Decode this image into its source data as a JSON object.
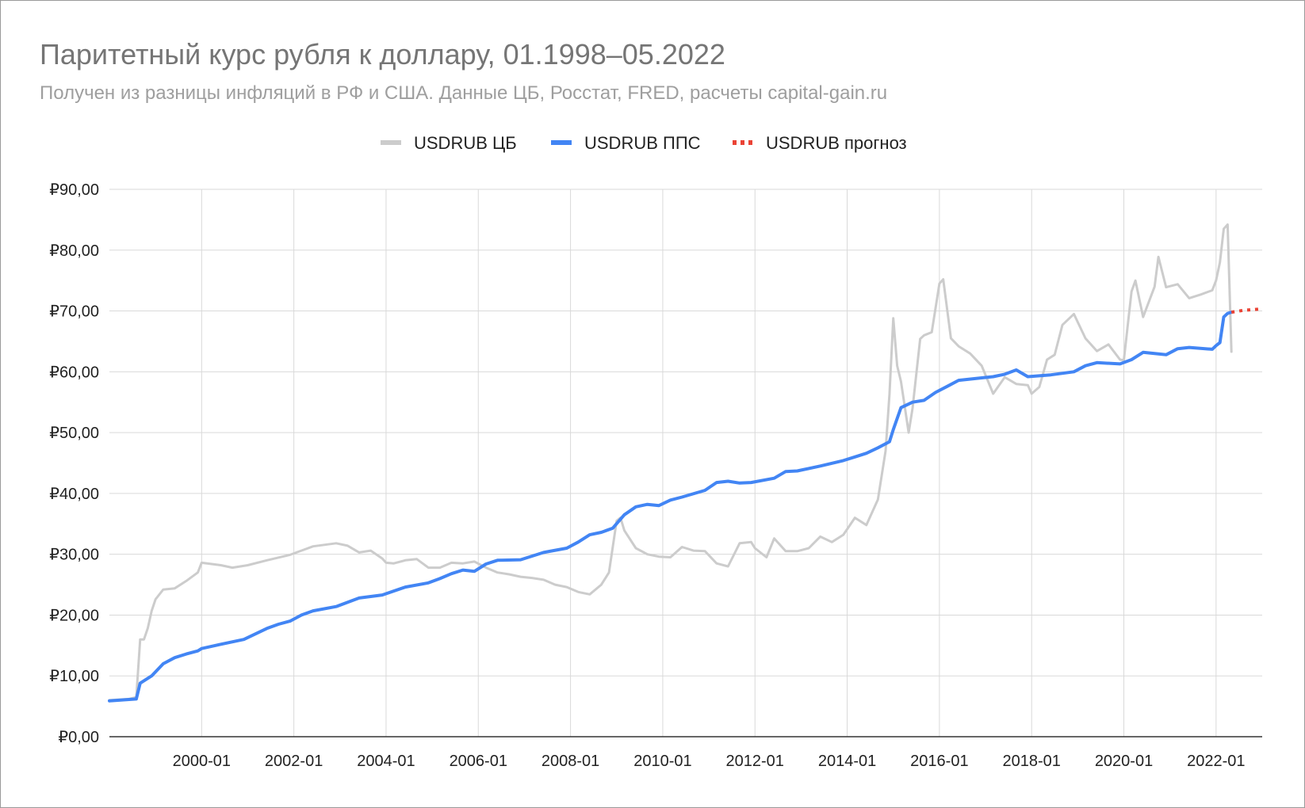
{
  "chart_data": {
    "type": "line",
    "title": "Паритетный курс рубля к доллару, 01.1998–05.2022",
    "subtitle": "Получен из разницы инфляций в РФ и США. Данные ЦБ, Росстат, FRED, расчеты capital-gain.ru",
    "xlabel": "",
    "ylabel": "",
    "x_range": [
      "1998-01",
      "2023-01"
    ],
    "ylim": [
      0,
      90
    ],
    "y_ticks": [
      0,
      10,
      20,
      30,
      40,
      50,
      60,
      70,
      80,
      90
    ],
    "y_tick_labels": [
      "₽0,00",
      "₽10,00",
      "₽20,00",
      "₽30,00",
      "₽40,00",
      "₽50,00",
      "₽60,00",
      "₽70,00",
      "₽80,00",
      "₽90,00"
    ],
    "x_tick_labels": [
      "2000-01",
      "2002-01",
      "2004-01",
      "2006-01",
      "2008-01",
      "2010-01",
      "2012-01",
      "2014-01",
      "2016-01",
      "2018-01",
      "2020-01",
      "2022-01"
    ],
    "grid": true,
    "legend_position": "top",
    "series": [
      {
        "name": "USDRUB ЦБ",
        "color": "#cccccc",
        "style": "solid",
        "points": [
          [
            "1998-01",
            6.0
          ],
          [
            "1998-06",
            6.2
          ],
          [
            "1998-08",
            6.5
          ],
          [
            "1998-09",
            16.0
          ],
          [
            "1998-10",
            16.0
          ],
          [
            "1998-11",
            17.9
          ],
          [
            "1998-12",
            20.7
          ],
          [
            "1999-01",
            22.6
          ],
          [
            "1999-03",
            24.2
          ],
          [
            "1999-06",
            24.4
          ],
          [
            "1999-09",
            25.6
          ],
          [
            "1999-12",
            27.0
          ],
          [
            "2000-01",
            28.6
          ],
          [
            "2000-06",
            28.2
          ],
          [
            "2000-09",
            27.8
          ],
          [
            "2001-01",
            28.2
          ],
          [
            "2001-06",
            29.0
          ],
          [
            "2001-12",
            29.9
          ],
          [
            "2002-06",
            31.3
          ],
          [
            "2002-12",
            31.8
          ],
          [
            "2003-03",
            31.4
          ],
          [
            "2003-06",
            30.3
          ],
          [
            "2003-09",
            30.6
          ],
          [
            "2003-12",
            29.3
          ],
          [
            "2004-01",
            28.6
          ],
          [
            "2004-03",
            28.5
          ],
          [
            "2004-06",
            29.0
          ],
          [
            "2004-09",
            29.2
          ],
          [
            "2004-12",
            27.8
          ],
          [
            "2005-03",
            27.8
          ],
          [
            "2005-06",
            28.6
          ],
          [
            "2005-09",
            28.5
          ],
          [
            "2005-12",
            28.8
          ],
          [
            "2006-03",
            27.8
          ],
          [
            "2006-06",
            27.0
          ],
          [
            "2006-09",
            26.7
          ],
          [
            "2006-12",
            26.3
          ],
          [
            "2007-03",
            26.1
          ],
          [
            "2007-06",
            25.8
          ],
          [
            "2007-09",
            25.0
          ],
          [
            "2007-12",
            24.6
          ],
          [
            "2008-03",
            23.8
          ],
          [
            "2008-06",
            23.4
          ],
          [
            "2008-09",
            25.0
          ],
          [
            "2008-11",
            27.0
          ],
          [
            "2009-01",
            35.5
          ],
          [
            "2009-02",
            36.0
          ],
          [
            "2009-03",
            33.9
          ],
          [
            "2009-06",
            31.0
          ],
          [
            "2009-09",
            30.0
          ],
          [
            "2009-12",
            29.6
          ],
          [
            "2010-03",
            29.5
          ],
          [
            "2010-06",
            31.2
          ],
          [
            "2010-09",
            30.6
          ],
          [
            "2010-12",
            30.5
          ],
          [
            "2011-03",
            28.5
          ],
          [
            "2011-06",
            28.0
          ],
          [
            "2011-09",
            31.8
          ],
          [
            "2011-12",
            32.0
          ],
          [
            "2012-01",
            31.0
          ],
          [
            "2012-04",
            29.5
          ],
          [
            "2012-06",
            32.6
          ],
          [
            "2012-09",
            30.5
          ],
          [
            "2012-12",
            30.5
          ],
          [
            "2013-03",
            31.0
          ],
          [
            "2013-06",
            32.9
          ],
          [
            "2013-09",
            32.0
          ],
          [
            "2013-12",
            33.2
          ],
          [
            "2014-03",
            36.0
          ],
          [
            "2014-06",
            34.8
          ],
          [
            "2014-09",
            39.0
          ],
          [
            "2014-11",
            47.0
          ],
          [
            "2014-12",
            56.3
          ],
          [
            "2015-01",
            68.8
          ],
          [
            "2015-02",
            61.0
          ],
          [
            "2015-03",
            58.4
          ],
          [
            "2015-05",
            50.0
          ],
          [
            "2015-06",
            54.0
          ],
          [
            "2015-08",
            65.4
          ],
          [
            "2015-09",
            66.0
          ],
          [
            "2015-11",
            66.5
          ],
          [
            "2016-01",
            74.5
          ],
          [
            "2016-02",
            75.2
          ],
          [
            "2016-04",
            65.5
          ],
          [
            "2016-06",
            64.2
          ],
          [
            "2016-09",
            63.0
          ],
          [
            "2016-12",
            61.0
          ],
          [
            "2017-03",
            56.4
          ],
          [
            "2017-06",
            59.1
          ],
          [
            "2017-09",
            58.0
          ],
          [
            "2017-12",
            57.8
          ],
          [
            "2018-01",
            56.4
          ],
          [
            "2018-03",
            57.5
          ],
          [
            "2018-05",
            62.0
          ],
          [
            "2018-07",
            62.8
          ],
          [
            "2018-09",
            67.7
          ],
          [
            "2018-12",
            69.5
          ],
          [
            "2019-03",
            65.5
          ],
          [
            "2019-06",
            63.4
          ],
          [
            "2019-09",
            64.5
          ],
          [
            "2019-12",
            62.0
          ],
          [
            "2020-01",
            61.9
          ],
          [
            "2020-03",
            73.2
          ],
          [
            "2020-04",
            75.0
          ],
          [
            "2020-06",
            69.0
          ],
          [
            "2020-09",
            74.0
          ],
          [
            "2020-10",
            78.9
          ],
          [
            "2020-12",
            73.9
          ],
          [
            "2021-03",
            74.4
          ],
          [
            "2021-06",
            72.1
          ],
          [
            "2021-09",
            72.7
          ],
          [
            "2021-12",
            73.4
          ],
          [
            "2022-01",
            75.0
          ],
          [
            "2022-02",
            78.0
          ],
          [
            "2022-03",
            83.5
          ],
          [
            "2022-04",
            84.2
          ],
          [
            "2022-05",
            63.3
          ]
        ]
      },
      {
        "name": "USDRUB ППС",
        "color": "#4285f4",
        "style": "solid",
        "points": [
          [
            "1998-01",
            5.9
          ],
          [
            "1998-08",
            6.2
          ],
          [
            "1998-09",
            8.8
          ],
          [
            "1998-12",
            10.0
          ],
          [
            "1999-03",
            12.0
          ],
          [
            "1999-06",
            13.0
          ],
          [
            "1999-09",
            13.6
          ],
          [
            "1999-12",
            14.1
          ],
          [
            "2000-01",
            14.5
          ],
          [
            "2000-06",
            15.2
          ],
          [
            "2000-12",
            16.0
          ],
          [
            "2001-06",
            17.8
          ],
          [
            "2001-09",
            18.5
          ],
          [
            "2001-12",
            19.0
          ],
          [
            "2002-03",
            20.0
          ],
          [
            "2002-06",
            20.7
          ],
          [
            "2002-12",
            21.4
          ],
          [
            "2003-06",
            22.8
          ],
          [
            "2003-12",
            23.3
          ],
          [
            "2004-06",
            24.6
          ],
          [
            "2004-12",
            25.3
          ],
          [
            "2005-03",
            26.0
          ],
          [
            "2005-06",
            26.8
          ],
          [
            "2005-09",
            27.4
          ],
          [
            "2005-12",
            27.2
          ],
          [
            "2006-03",
            28.4
          ],
          [
            "2006-06",
            29.0
          ],
          [
            "2006-12",
            29.1
          ],
          [
            "2007-06",
            30.3
          ],
          [
            "2007-12",
            31.0
          ],
          [
            "2008-03",
            32.0
          ],
          [
            "2008-06",
            33.2
          ],
          [
            "2008-09",
            33.6
          ],
          [
            "2008-12",
            34.3
          ],
          [
            "2009-03",
            36.5
          ],
          [
            "2009-06",
            37.8
          ],
          [
            "2009-09",
            38.2
          ],
          [
            "2009-12",
            38.0
          ],
          [
            "2010-03",
            38.9
          ],
          [
            "2010-06",
            39.4
          ],
          [
            "2010-12",
            40.5
          ],
          [
            "2011-03",
            41.8
          ],
          [
            "2011-06",
            42.0
          ],
          [
            "2011-09",
            41.7
          ],
          [
            "2011-12",
            41.8
          ],
          [
            "2012-06",
            42.5
          ],
          [
            "2012-09",
            43.6
          ],
          [
            "2012-12",
            43.7
          ],
          [
            "2013-06",
            44.5
          ],
          [
            "2013-12",
            45.4
          ],
          [
            "2014-03",
            46.0
          ],
          [
            "2014-06",
            46.6
          ],
          [
            "2014-09",
            47.5
          ],
          [
            "2014-12",
            48.5
          ],
          [
            "2015-01",
            50.5
          ],
          [
            "2015-03",
            54.1
          ],
          [
            "2015-06",
            55.0
          ],
          [
            "2015-09",
            55.3
          ],
          [
            "2015-12",
            56.6
          ],
          [
            "2016-03",
            57.6
          ],
          [
            "2016-06",
            58.6
          ],
          [
            "2016-12",
            59.0
          ],
          [
            "2017-03",
            59.2
          ],
          [
            "2017-06",
            59.6
          ],
          [
            "2017-09",
            60.3
          ],
          [
            "2017-12",
            59.2
          ],
          [
            "2018-06",
            59.5
          ],
          [
            "2018-12",
            60.0
          ],
          [
            "2019-03",
            61.0
          ],
          [
            "2019-06",
            61.5
          ],
          [
            "2019-12",
            61.3
          ],
          [
            "2020-03",
            62.0
          ],
          [
            "2020-06",
            63.2
          ],
          [
            "2020-12",
            62.8
          ],
          [
            "2021-03",
            63.8
          ],
          [
            "2021-06",
            64.0
          ],
          [
            "2021-12",
            63.7
          ],
          [
            "2022-01",
            64.3
          ],
          [
            "2022-02",
            64.8
          ],
          [
            "2022-03",
            69.0
          ],
          [
            "2022-04",
            69.6
          ],
          [
            "2022-05",
            69.8
          ]
        ]
      },
      {
        "name": "USDRUB прогноз",
        "color": "#ea4335",
        "style": "dotted",
        "points": [
          [
            "2022-05",
            69.8
          ],
          [
            "2022-08",
            70.1
          ],
          [
            "2022-12",
            70.3
          ]
        ]
      }
    ]
  }
}
